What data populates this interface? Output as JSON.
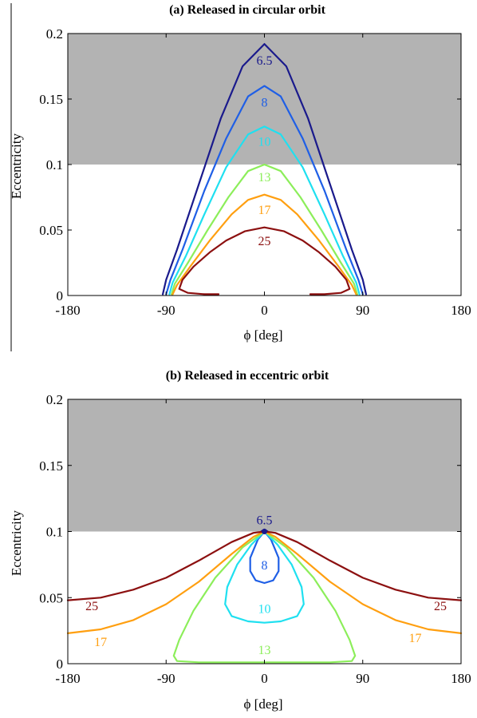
{
  "colors": {
    "shade": "#b3b3b3",
    "c6_5": "#1a1a8c",
    "c8": "#1f5fe6",
    "c10": "#1fe0f0",
    "c13": "#8cee5a",
    "c17": "#ff9f10",
    "c25": "#8c1010"
  },
  "chart_data": [
    {
      "type": "line",
      "title": "(a) Released in circular orbit",
      "xlabel": "ϕ [deg]",
      "ylabel": "Eccentricity",
      "xlim": [
        -180,
        180
      ],
      "ylim": [
        0,
        0.2
      ],
      "x_ticks": [
        "-180",
        "-90",
        "0",
        "90",
        "180"
      ],
      "y_ticks": [
        "0",
        "0.05",
        "0.1",
        "0.15",
        "0.2"
      ],
      "shaded_region": {
        "y_from": 0.1,
        "y_to": 0.2
      },
      "grid": false,
      "series": [
        {
          "name": "6.5",
          "color_key": "c6_5",
          "x": [
            -93,
            -90,
            -80,
            -60,
            -40,
            -20,
            0,
            20,
            40,
            60,
            80,
            90,
            93
          ],
          "y": [
            0.001,
            0.012,
            0.035,
            0.085,
            0.135,
            0.175,
            0.192,
            0.175,
            0.135,
            0.085,
            0.035,
            0.012,
            0.001
          ]
        },
        {
          "name": "8",
          "color_key": "c8",
          "x": [
            -90,
            -86,
            -75,
            -55,
            -35,
            -15,
            0,
            15,
            35,
            55,
            75,
            86,
            90
          ],
          "y": [
            0.001,
            0.012,
            0.035,
            0.08,
            0.12,
            0.152,
            0.16,
            0.152,
            0.12,
            0.08,
            0.035,
            0.012,
            0.001
          ]
        },
        {
          "name": "10",
          "color_key": "c10",
          "x": [
            -87,
            -84,
            -72,
            -55,
            -35,
            -15,
            0,
            15,
            35,
            55,
            72,
            84,
            87
          ],
          "y": [
            0.001,
            0.01,
            0.03,
            0.062,
            0.098,
            0.123,
            0.129,
            0.123,
            0.098,
            0.062,
            0.03,
            0.01,
            0.001
          ]
        },
        {
          "name": "13",
          "color_key": "c13",
          "x": [
            -85,
            -82,
            -70,
            -52,
            -33,
            -15,
            0,
            15,
            33,
            52,
            70,
            82,
            85
          ],
          "y": [
            0.001,
            0.009,
            0.025,
            0.05,
            0.075,
            0.095,
            0.1,
            0.095,
            0.075,
            0.05,
            0.025,
            0.009,
            0.001
          ]
        },
        {
          "name": "17",
          "color_key": "c17",
          "x": [
            -84,
            -80,
            -68,
            -50,
            -30,
            -15,
            0,
            15,
            30,
            50,
            68,
            80,
            84
          ],
          "y": [
            0.001,
            0.008,
            0.022,
            0.042,
            0.062,
            0.073,
            0.077,
            0.073,
            0.062,
            0.042,
            0.022,
            0.008,
            0.001
          ]
        },
        {
          "name": "25",
          "color_key": "c25",
          "x": [
            -42,
            -55,
            -70,
            -78,
            -75,
            -65,
            -50,
            -35,
            -18,
            0,
            18,
            35,
            50,
            65,
            75,
            78,
            70,
            55,
            42
          ],
          "y": [
            0.001,
            0.001,
            0.002,
            0.005,
            0.012,
            0.022,
            0.033,
            0.042,
            0.049,
            0.052,
            0.049,
            0.042,
            0.033,
            0.022,
            0.012,
            0.005,
            0.002,
            0.001,
            0.001
          ]
        }
      ],
      "annotations": [
        {
          "text": "6.5",
          "x": 0,
          "y": 0.18,
          "color_key": "c6_5"
        },
        {
          "text": "8",
          "x": 0,
          "y": 0.148,
          "color_key": "c8"
        },
        {
          "text": "10",
          "x": 0,
          "y": 0.118,
          "color_key": "c10"
        },
        {
          "text": "13",
          "x": 0,
          "y": 0.091,
          "color_key": "c13"
        },
        {
          "text": "17",
          "x": 0,
          "y": 0.066,
          "color_key": "c17"
        },
        {
          "text": "25",
          "x": 0,
          "y": 0.042,
          "color_key": "c25"
        }
      ]
    },
    {
      "type": "line",
      "title": "(b) Released in eccentric orbit",
      "xlabel": "ϕ [deg]",
      "ylabel": "Eccentricity",
      "xlim": [
        -180,
        180
      ],
      "ylim": [
        0,
        0.2
      ],
      "x_ticks": [
        "-180",
        "-90",
        "0",
        "90",
        "180"
      ],
      "y_ticks": [
        "0",
        "0.05",
        "0.1",
        "0.15",
        "0.2"
      ],
      "shaded_region": {
        "y_from": 0.1,
        "y_to": 0.2
      },
      "grid": false,
      "marker": {
        "x": 0,
        "y": 0.1,
        "color_key": "c6_5"
      },
      "series": [
        {
          "name": "6.5",
          "color_key": "c6_5",
          "x": [
            -3,
            0,
            3
          ],
          "y": [
            0.1,
            0.1015,
            0.1
          ]
        },
        {
          "name": "8",
          "color_key": "c8",
          "x": [
            0,
            -6,
            -13,
            -13,
            -8,
            0,
            8,
            13,
            13,
            6,
            0
          ],
          "y": [
            0.1,
            0.094,
            0.08,
            0.07,
            0.063,
            0.061,
            0.063,
            0.07,
            0.08,
            0.094,
            0.1
          ],
          "closed": true
        },
        {
          "name": "10",
          "color_key": "c10",
          "x": [
            0,
            -12,
            -25,
            -34,
            -36,
            -30,
            -15,
            0,
            15,
            30,
            36,
            34,
            25,
            12,
            0
          ],
          "y": [
            0.1,
            0.09,
            0.075,
            0.058,
            0.045,
            0.036,
            0.032,
            0.031,
            0.032,
            0.036,
            0.045,
            0.058,
            0.075,
            0.09,
            0.1
          ],
          "closed": true
        },
        {
          "name": "13",
          "color_key": "c13",
          "x": [
            0,
            -20,
            -45,
            -65,
            -78,
            -83,
            -80,
            -60,
            -30,
            0,
            30,
            60,
            80,
            83,
            78,
            65,
            45,
            20,
            0
          ],
          "y": [
            0.1,
            0.088,
            0.065,
            0.04,
            0.018,
            0.006,
            0.002,
            0.001,
            0.001,
            0.001,
            0.001,
            0.001,
            0.002,
            0.006,
            0.018,
            0.04,
            0.065,
            0.088,
            0.1
          ],
          "closed": true
        },
        {
          "name": "17",
          "color_key": "c17",
          "x": [
            -180,
            -150,
            -120,
            -90,
            -60,
            -30,
            -10,
            0,
            10,
            30,
            60,
            90,
            120,
            150,
            180
          ],
          "y": [
            0.023,
            0.026,
            0.033,
            0.045,
            0.062,
            0.083,
            0.096,
            0.1,
            0.096,
            0.083,
            0.062,
            0.045,
            0.033,
            0.026,
            0.023
          ]
        },
        {
          "name": "25",
          "color_key": "c25",
          "x": [
            -180,
            -150,
            -120,
            -90,
            -60,
            -30,
            -10,
            0,
            10,
            30,
            60,
            90,
            120,
            150,
            180
          ],
          "y": [
            0.048,
            0.05,
            0.056,
            0.065,
            0.078,
            0.092,
            0.099,
            0.1,
            0.099,
            0.092,
            0.078,
            0.065,
            0.056,
            0.05,
            0.048
          ]
        }
      ],
      "annotations": [
        {
          "text": "6.5",
          "x": 0,
          "y": 0.109,
          "color_key": "c6_5"
        },
        {
          "text": "8",
          "x": 0,
          "y": 0.075,
          "color_key": "c8"
        },
        {
          "text": "10",
          "x": 0,
          "y": 0.042,
          "color_key": "c10"
        },
        {
          "text": "13",
          "x": 0,
          "y": 0.011,
          "color_key": "c13"
        },
        {
          "text": "25",
          "x": -158,
          "y": 0.044,
          "color_key": "c25"
        },
        {
          "text": "25",
          "x": 161,
          "y": 0.044,
          "color_key": "c25"
        },
        {
          "text": "17",
          "x": -150,
          "y": 0.017,
          "color_key": "c17"
        },
        {
          "text": "17",
          "x": 138,
          "y": 0.02,
          "color_key": "c17"
        }
      ]
    }
  ]
}
